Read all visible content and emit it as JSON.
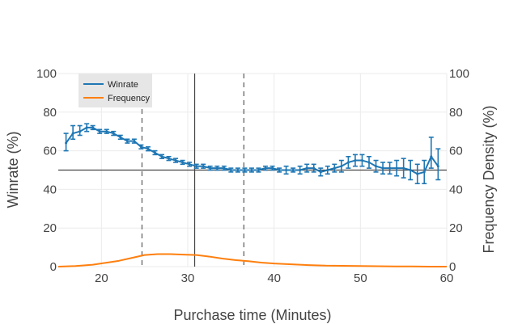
{
  "chart_data": {
    "type": "line",
    "xlabel": "Purchase time (Minutes)",
    "ylabel_left": "Winrate (%)",
    "ylabel_right": "Frequency Density (%)",
    "xlim": [
      15,
      60
    ],
    "ylim": [
      0,
      100
    ],
    "x_ticks": [
      20,
      30,
      40,
      50,
      60
    ],
    "y_ticks": [
      0,
      20,
      40,
      60,
      80,
      100
    ],
    "y_right_ticks": [
      0,
      20,
      40,
      60,
      80,
      100
    ],
    "grid": true,
    "legend_position": "top-left",
    "reference_lines": {
      "horizontal_solid_y": 50,
      "vertical_solid_x": 30.8,
      "vertical_dashed_x": [
        24.7,
        36.5
      ]
    },
    "series": [
      {
        "name": "Winrate",
        "color": "#1f77b4",
        "error_bars": true,
        "x": [
          15.9,
          16.7,
          17.5,
          18.3,
          19.0,
          19.8,
          20.6,
          21.4,
          22.2,
          23.0,
          23.8,
          24.6,
          25.4,
          26.2,
          27.0,
          27.8,
          28.6,
          29.4,
          30.2,
          31.0,
          31.8,
          32.6,
          33.4,
          34.2,
          35.0,
          35.8,
          36.6,
          37.4,
          38.2,
          39.0,
          39.8,
          40.6,
          41.4,
          42.2,
          43.0,
          43.8,
          44.6,
          45.4,
          46.2,
          47.0,
          47.8,
          48.6,
          49.4,
          50.2,
          51.0,
          51.8,
          52.6,
          53.4,
          54.2,
          55.0,
          55.8,
          56.6,
          57.4,
          58.2,
          59.0
        ],
        "values": [
          64,
          69,
          70,
          72,
          72,
          70,
          70,
          69,
          67,
          65,
          65,
          62,
          61,
          59,
          57,
          56,
          55,
          54,
          53,
          52,
          52,
          51,
          51,
          51,
          50,
          50,
          50,
          50,
          50,
          51,
          51,
          50,
          50,
          50,
          50,
          51,
          51,
          49,
          50,
          51,
          52,
          54,
          55,
          55,
          54,
          52,
          51,
          51,
          51,
          51,
          50,
          48,
          49,
          57,
          52
        ],
        "error_low": [
          60,
          66,
          68,
          70,
          71,
          69,
          69,
          68,
          66,
          64,
          64,
          61,
          60,
          58,
          56,
          55,
          54,
          53,
          52,
          51,
          51,
          50,
          50,
          50,
          49,
          49,
          49,
          49,
          49,
          50,
          50,
          49,
          48,
          49,
          48,
          49,
          49,
          47,
          48,
          49,
          49,
          51,
          52,
          52,
          51,
          49,
          48,
          48,
          47,
          46,
          45,
          43,
          43,
          51,
          45
        ],
        "error_high": [
          69,
          73,
          73,
          74,
          73,
          71,
          71,
          70,
          68,
          66,
          66,
          63,
          62,
          60,
          58,
          57,
          56,
          55,
          54,
          53,
          53,
          52,
          52,
          52,
          51,
          51,
          51,
          51,
          51,
          52,
          52,
          51,
          52,
          51,
          52,
          53,
          53,
          51,
          52,
          53,
          55,
          57,
          58,
          58,
          57,
          55,
          54,
          54,
          55,
          56,
          55,
          53,
          55,
          67,
          61
        ]
      },
      {
        "name": "Frequency",
        "color": "#ff7f0e",
        "error_bars": false,
        "x": [
          15,
          17,
          19,
          20.5,
          22,
          23.5,
          25,
          26.5,
          28,
          29.5,
          31,
          32.5,
          34,
          35.5,
          37,
          38.5,
          40,
          42,
          44,
          46,
          48,
          50,
          52,
          54,
          56,
          58,
          60
        ],
        "values": [
          0,
          0.3,
          1,
          2,
          3,
          4.5,
          6,
          6.5,
          6.5,
          6.2,
          6,
          5.2,
          4.2,
          3.4,
          2.8,
          2.1,
          1.6,
          1.2,
          0.8,
          0.5,
          0.4,
          0.3,
          0.2,
          0.1,
          0.1,
          0,
          0
        ]
      }
    ]
  }
}
